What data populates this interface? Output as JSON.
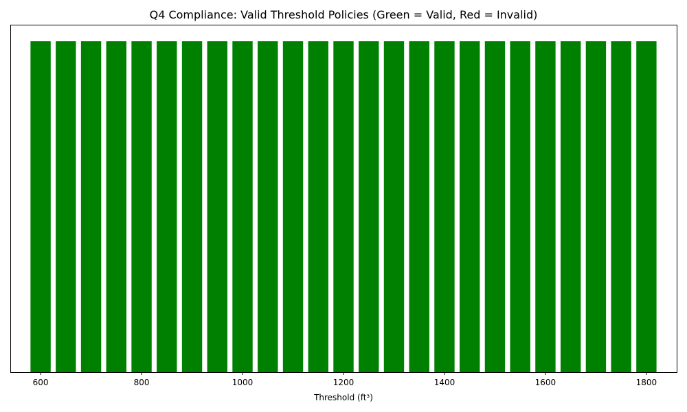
{
  "chart_data": {
    "type": "bar",
    "title": "Q4 Compliance: Valid Threshold Policies (Green = Valid, Red = Invalid)",
    "xlabel": "Threshold (ft³)",
    "ylabel": "",
    "x": [
      600,
      650,
      700,
      750,
      800,
      850,
      900,
      950,
      1000,
      1050,
      1100,
      1150,
      1200,
      1250,
      1300,
      1350,
      1400,
      1450,
      1500,
      1550,
      1600,
      1650,
      1700,
      1750,
      1800
    ],
    "values": [
      1,
      1,
      1,
      1,
      1,
      1,
      1,
      1,
      1,
      1,
      1,
      1,
      1,
      1,
      1,
      1,
      1,
      1,
      1,
      1,
      1,
      1,
      1,
      1,
      1
    ],
    "status": [
      "valid",
      "valid",
      "valid",
      "valid",
      "valid",
      "valid",
      "valid",
      "valid",
      "valid",
      "valid",
      "valid",
      "valid",
      "valid",
      "valid",
      "valid",
      "valid",
      "valid",
      "valid",
      "valid",
      "valid",
      "valid",
      "valid",
      "valid",
      "valid",
      "valid"
    ],
    "bar_width": 40,
    "xlim": [
      540,
      1860
    ],
    "ylim": [
      0,
      1.05
    ],
    "xticks": [
      600,
      800,
      1000,
      1200,
      1400,
      1600,
      1800
    ],
    "yticks": [],
    "grid": false,
    "colors": {
      "valid": "#008000",
      "invalid": "#ff0000"
    }
  }
}
